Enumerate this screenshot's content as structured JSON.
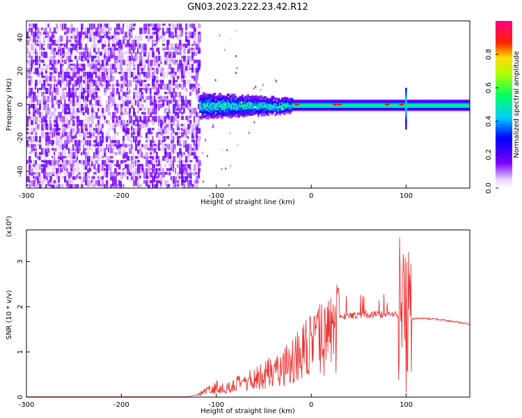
{
  "title": "GN03.2023.222.23.42.R12",
  "colors": {
    "snr_line": "#ee3333",
    "axis": "#000000"
  },
  "chart_data": [
    {
      "type": "heatmap",
      "xlabel": "Height of straight line (km)",
      "ylabel": "Frequency (Hz)",
      "xlim": [
        -300,
        167
      ],
      "ylim": [
        -50,
        50
      ],
      "xticks": [
        -300,
        -200,
        -100,
        0,
        100
      ],
      "yticks": [
        -40,
        -20,
        0,
        20,
        40
      ],
      "colorbar": {
        "label": "Normalized spectral amplitude",
        "range": [
          0,
          1
        ],
        "ticks": [
          "0.0",
          "0.2",
          "0.4",
          "0.6",
          "0.8"
        ],
        "colormap": "rainbow (purple → blue → cyan → green → yellow → red → magenta)"
      },
      "features": {
        "noise_region_x": [
          -300,
          -118
        ],
        "signal_band_center_freq_hz": 0,
        "broad_band_x": [
          -118,
          -20
        ],
        "narrow_band_x": [
          -20,
          167
        ],
        "peak_amplitude_heights_km": [
          -15,
          25,
          30,
          80,
          95
        ]
      }
    },
    {
      "type": "line",
      "xlabel": "Height of straight line (km)",
      "ylabel": "SNR (10 * v/v)",
      "yscale_label": "(x10⁴)",
      "xlim": [
        -300,
        167
      ],
      "ylim": [
        0,
        3.7
      ],
      "xticks": [
        -300,
        -200,
        -100,
        0,
        100
      ],
      "yticks": [
        0,
        1,
        2,
        3
      ],
      "series": [
        {
          "x": [
            -300,
            -200,
            -130,
            -120,
            -110,
            -100,
            -90,
            -80,
            -70,
            -60,
            -50,
            -40,
            -30,
            -20,
            -10,
            0,
            10,
            20,
            30,
            40,
            50,
            60,
            70,
            80,
            90,
            95,
            100,
            103,
            106,
            110,
            120,
            130,
            140,
            150,
            160,
            167
          ],
          "values": [
            0.01,
            0.01,
            0.01,
            0.05,
            0.15,
            0.25,
            0.2,
            0.3,
            0.35,
            0.45,
            0.55,
            0.65,
            0.75,
            0.9,
            1.1,
            1.25,
            1.4,
            1.55,
            1.75,
            1.8,
            1.8,
            1.82,
            1.83,
            1.83,
            1.82,
            1.8,
            1.75,
            1.68,
            1.72,
            1.75,
            1.74,
            1.72,
            1.7,
            1.67,
            1.64,
            1.62
          ]
        }
      ]
    }
  ]
}
